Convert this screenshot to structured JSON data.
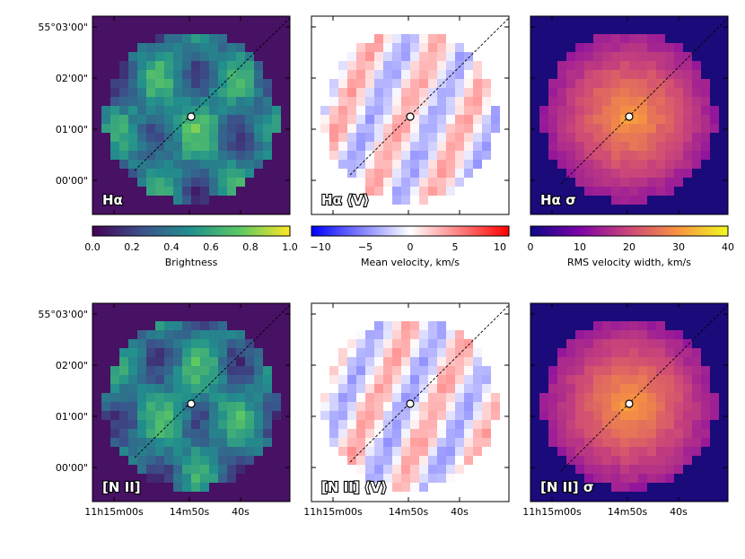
{
  "figure": {
    "dec_ticks": [
      "55°03'00\"",
      "02'00\"",
      "01'00\"",
      "00'00\""
    ],
    "ra_ticks": [
      "11h15m00s",
      "14m50s",
      "40s"
    ],
    "panels": [
      {
        "label": "Hα",
        "cmap": "viridis"
      },
      {
        "label": "Hα ⟨V⟩",
        "cmap": "bwr"
      },
      {
        "label": "Hα σ",
        "cmap": "plasma"
      },
      {
        "label": "[N II]",
        "cmap": "viridis"
      },
      {
        "label": "[N II] ⟨V⟩",
        "cmap": "bwr"
      },
      {
        "label": "[N II] σ",
        "cmap": "plasma"
      }
    ],
    "colorbars": [
      {
        "label": "Brightness",
        "ticks": [
          "0.0",
          "0.2",
          "0.4",
          "0.6",
          "0.8",
          "1.0"
        ],
        "range": [
          0,
          1
        ],
        "cmap": "viridis"
      },
      {
        "label": "Mean velocity, km/s",
        "ticks": [
          "−10",
          "−5",
          "0",
          "5",
          "10"
        ],
        "range": [
          -11,
          11
        ],
        "cmap": "bwr"
      },
      {
        "label": "RMS velocity width, km/s",
        "ticks": [
          "0",
          "10",
          "20",
          "30",
          "40"
        ],
        "range": [
          0,
          40
        ],
        "cmap": "plasma"
      }
    ]
  }
}
